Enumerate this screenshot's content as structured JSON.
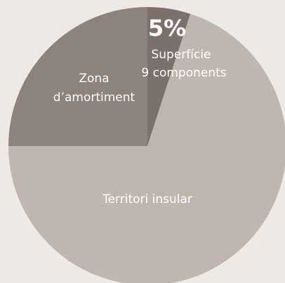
{
  "chart_data": {
    "type": "pie",
    "categories": [
      [
        "Superfície",
        "9 components"
      ],
      [
        "Territori insular"
      ],
      [
        "Zona",
        "d’amortiment"
      ]
    ],
    "values": [
      5,
      70,
      25
    ],
    "value_labels": [
      "5%",
      null,
      null
    ],
    "colors": [
      "#7b716b",
      "#bfb7ae",
      "#8d837b"
    ]
  }
}
